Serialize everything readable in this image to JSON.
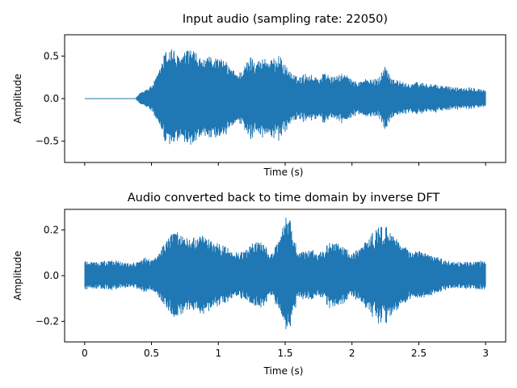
{
  "chart_data": [
    {
      "type": "line",
      "title": "Input audio (sampling rate: 22050)",
      "xlabel": "Time (s)",
      "ylabel": "Amplitude",
      "xlim": [
        -0.15,
        3.15
      ],
      "ylim": [
        -0.75,
        0.75
      ],
      "xticks": [
        0,
        0.5,
        1,
        1.5,
        2,
        2.5,
        3
      ],
      "xtick_labels_shown": false,
      "yticks": [
        -0.5,
        0,
        0.5
      ],
      "ytick_labels": [
        "−0.5",
        "0.0",
        "0.5"
      ],
      "grid": false,
      "color": "#1f77b4",
      "series": [
        {
          "envelope_points": [
            [
              0,
              0.0
            ],
            [
              0.2,
              0.0
            ],
            [
              0.38,
              0.0
            ],
            [
              0.42,
              0.08
            ],
            [
              0.5,
              0.15
            ],
            [
              0.55,
              0.3
            ],
            [
              0.6,
              0.55
            ],
            [
              0.65,
              0.62
            ],
            [
              0.7,
              0.5
            ],
            [
              0.75,
              0.55
            ],
            [
              0.8,
              0.6
            ],
            [
              0.85,
              0.5
            ],
            [
              0.9,
              0.45
            ],
            [
              0.95,
              0.52
            ],
            [
              1.0,
              0.48
            ],
            [
              1.05,
              0.45
            ],
            [
              1.1,
              0.35
            ],
            [
              1.15,
              0.3
            ],
            [
              1.2,
              0.4
            ],
            [
              1.25,
              0.52
            ],
            [
              1.3,
              0.45
            ],
            [
              1.35,
              0.5
            ],
            [
              1.4,
              0.45
            ],
            [
              1.45,
              0.53
            ],
            [
              1.5,
              0.4
            ],
            [
              1.55,
              0.3
            ],
            [
              1.6,
              0.25
            ],
            [
              1.65,
              0.3
            ],
            [
              1.7,
              0.28
            ],
            [
              1.75,
              0.25
            ],
            [
              1.8,
              0.32
            ],
            [
              1.85,
              0.25
            ],
            [
              1.9,
              0.28
            ],
            [
              1.95,
              0.3
            ],
            [
              2.0,
              0.22
            ],
            [
              2.05,
              0.2
            ],
            [
              2.1,
              0.24
            ],
            [
              2.15,
              0.22
            ],
            [
              2.2,
              0.25
            ],
            [
              2.25,
              0.4
            ],
            [
              2.3,
              0.25
            ],
            [
              2.4,
              0.18
            ],
            [
              2.5,
              0.2
            ],
            [
              2.6,
              0.17
            ],
            [
              2.7,
              0.15
            ],
            [
              2.8,
              0.13
            ],
            [
              2.9,
              0.14
            ],
            [
              2.95,
              0.12
            ],
            [
              3.0,
              0.1
            ]
          ]
        }
      ]
    },
    {
      "type": "line",
      "title": "Audio converted back to time domain by inverse DFT",
      "xlabel": "Time (s)",
      "ylabel": "Amplitude",
      "xlim": [
        -0.15,
        3.15
      ],
      "ylim": [
        -0.29,
        0.29
      ],
      "xticks": [
        0,
        0.5,
        1,
        1.5,
        2,
        2.5,
        3
      ],
      "xtick_labels": [
        "0",
        "0.5",
        "1",
        "1.5",
        "2",
        "2.5",
        "3"
      ],
      "yticks": [
        -0.2,
        0,
        0.2
      ],
      "ytick_labels": [
        "−0.2",
        "0.0",
        "0.2"
      ],
      "grid": false,
      "color": "#1f77b4",
      "series": [
        {
          "envelope_points": [
            [
              0,
              0.07
            ],
            [
              0.1,
              0.06
            ],
            [
              0.2,
              0.07
            ],
            [
              0.3,
              0.06
            ],
            [
              0.4,
              0.06
            ],
            [
              0.45,
              0.08
            ],
            [
              0.5,
              0.07
            ],
            [
              0.55,
              0.1
            ],
            [
              0.6,
              0.15
            ],
            [
              0.65,
              0.18
            ],
            [
              0.7,
              0.2
            ],
            [
              0.75,
              0.17
            ],
            [
              0.8,
              0.16
            ],
            [
              0.85,
              0.18
            ],
            [
              0.9,
              0.17
            ],
            [
              0.95,
              0.16
            ],
            [
              1.0,
              0.14
            ],
            [
              1.05,
              0.13
            ],
            [
              1.1,
              0.11
            ],
            [
              1.15,
              0.1
            ],
            [
              1.2,
              0.11
            ],
            [
              1.25,
              0.14
            ],
            [
              1.3,
              0.16
            ],
            [
              1.35,
              0.13
            ],
            [
              1.4,
              0.1
            ],
            [
              1.45,
              0.15
            ],
            [
              1.5,
              0.25
            ],
            [
              1.53,
              0.27
            ],
            [
              1.55,
              0.2
            ],
            [
              1.6,
              0.1
            ],
            [
              1.65,
              0.11
            ],
            [
              1.7,
              0.12
            ],
            [
              1.75,
              0.1
            ],
            [
              1.8,
              0.13
            ],
            [
              1.85,
              0.15
            ],
            [
              1.9,
              0.14
            ],
            [
              1.95,
              0.12
            ],
            [
              2.0,
              0.1
            ],
            [
              2.05,
              0.12
            ],
            [
              2.1,
              0.15
            ],
            [
              2.15,
              0.19
            ],
            [
              2.2,
              0.21
            ],
            [
              2.25,
              0.22
            ],
            [
              2.3,
              0.19
            ],
            [
              2.35,
              0.16
            ],
            [
              2.4,
              0.13
            ],
            [
              2.45,
              0.1
            ],
            [
              2.5,
              0.11
            ],
            [
              2.55,
              0.1
            ],
            [
              2.6,
              0.09
            ],
            [
              2.7,
              0.07
            ],
            [
              2.8,
              0.06
            ],
            [
              2.9,
              0.06
            ],
            [
              3.0,
              0.07
            ]
          ]
        }
      ]
    }
  ]
}
